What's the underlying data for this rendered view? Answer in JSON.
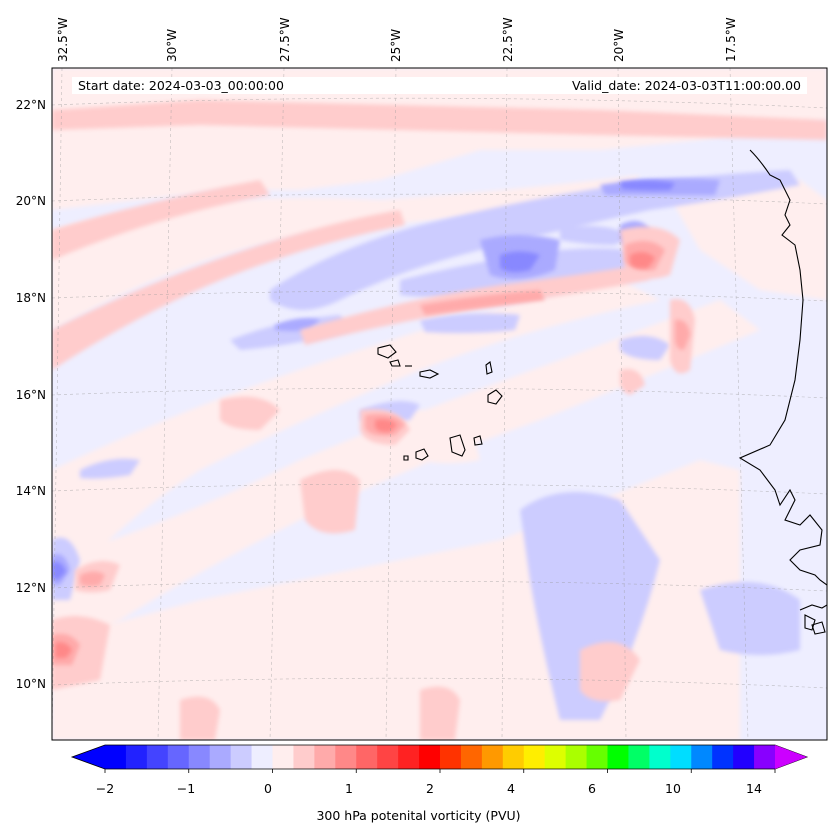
{
  "header": {
    "start_date": "Start date: 2024-03-03_00:00:00",
    "valid_date": "Valid_date: 2024-03-03T11:00:00.00"
  },
  "longitude_labels": [
    "32.5°W",
    "30°W",
    "27.5°W",
    "25°W",
    "22.5°W",
    "20°W",
    "17.5°W"
  ],
  "latitude_labels": [
    "22°N",
    "20°N",
    "18°N",
    "16°N",
    "14°N",
    "12°N",
    "10°N"
  ],
  "colorbar": {
    "label": "300 hPa potenital vorticity (PVU)",
    "tick_labels": [
      "−2",
      "−1",
      "0",
      "1",
      "2",
      "4",
      "6",
      "10",
      "14"
    ],
    "colors": [
      "#0000ff",
      "#2222ff",
      "#4444ff",
      "#6666ff",
      "#8888ff",
      "#aaaaff",
      "#ccccff",
      "#eeeeff",
      "#ffeeee",
      "#ffcccc",
      "#ffaaaa",
      "#ff8888",
      "#ff6666",
      "#ff4444",
      "#ff2222",
      "#ff0000",
      "#ff3300",
      "#ff6600",
      "#ff9900",
      "#ffcc00",
      "#ffee00",
      "#ddff00",
      "#aaff00",
      "#66ff00",
      "#00ff00",
      "#00ff66",
      "#00ffcc",
      "#00ddff",
      "#0088ff",
      "#0033ff",
      "#2200ff",
      "#8800ff"
    ],
    "under_color": "#0000ff",
    "over_color": "#cc00ff"
  }
}
